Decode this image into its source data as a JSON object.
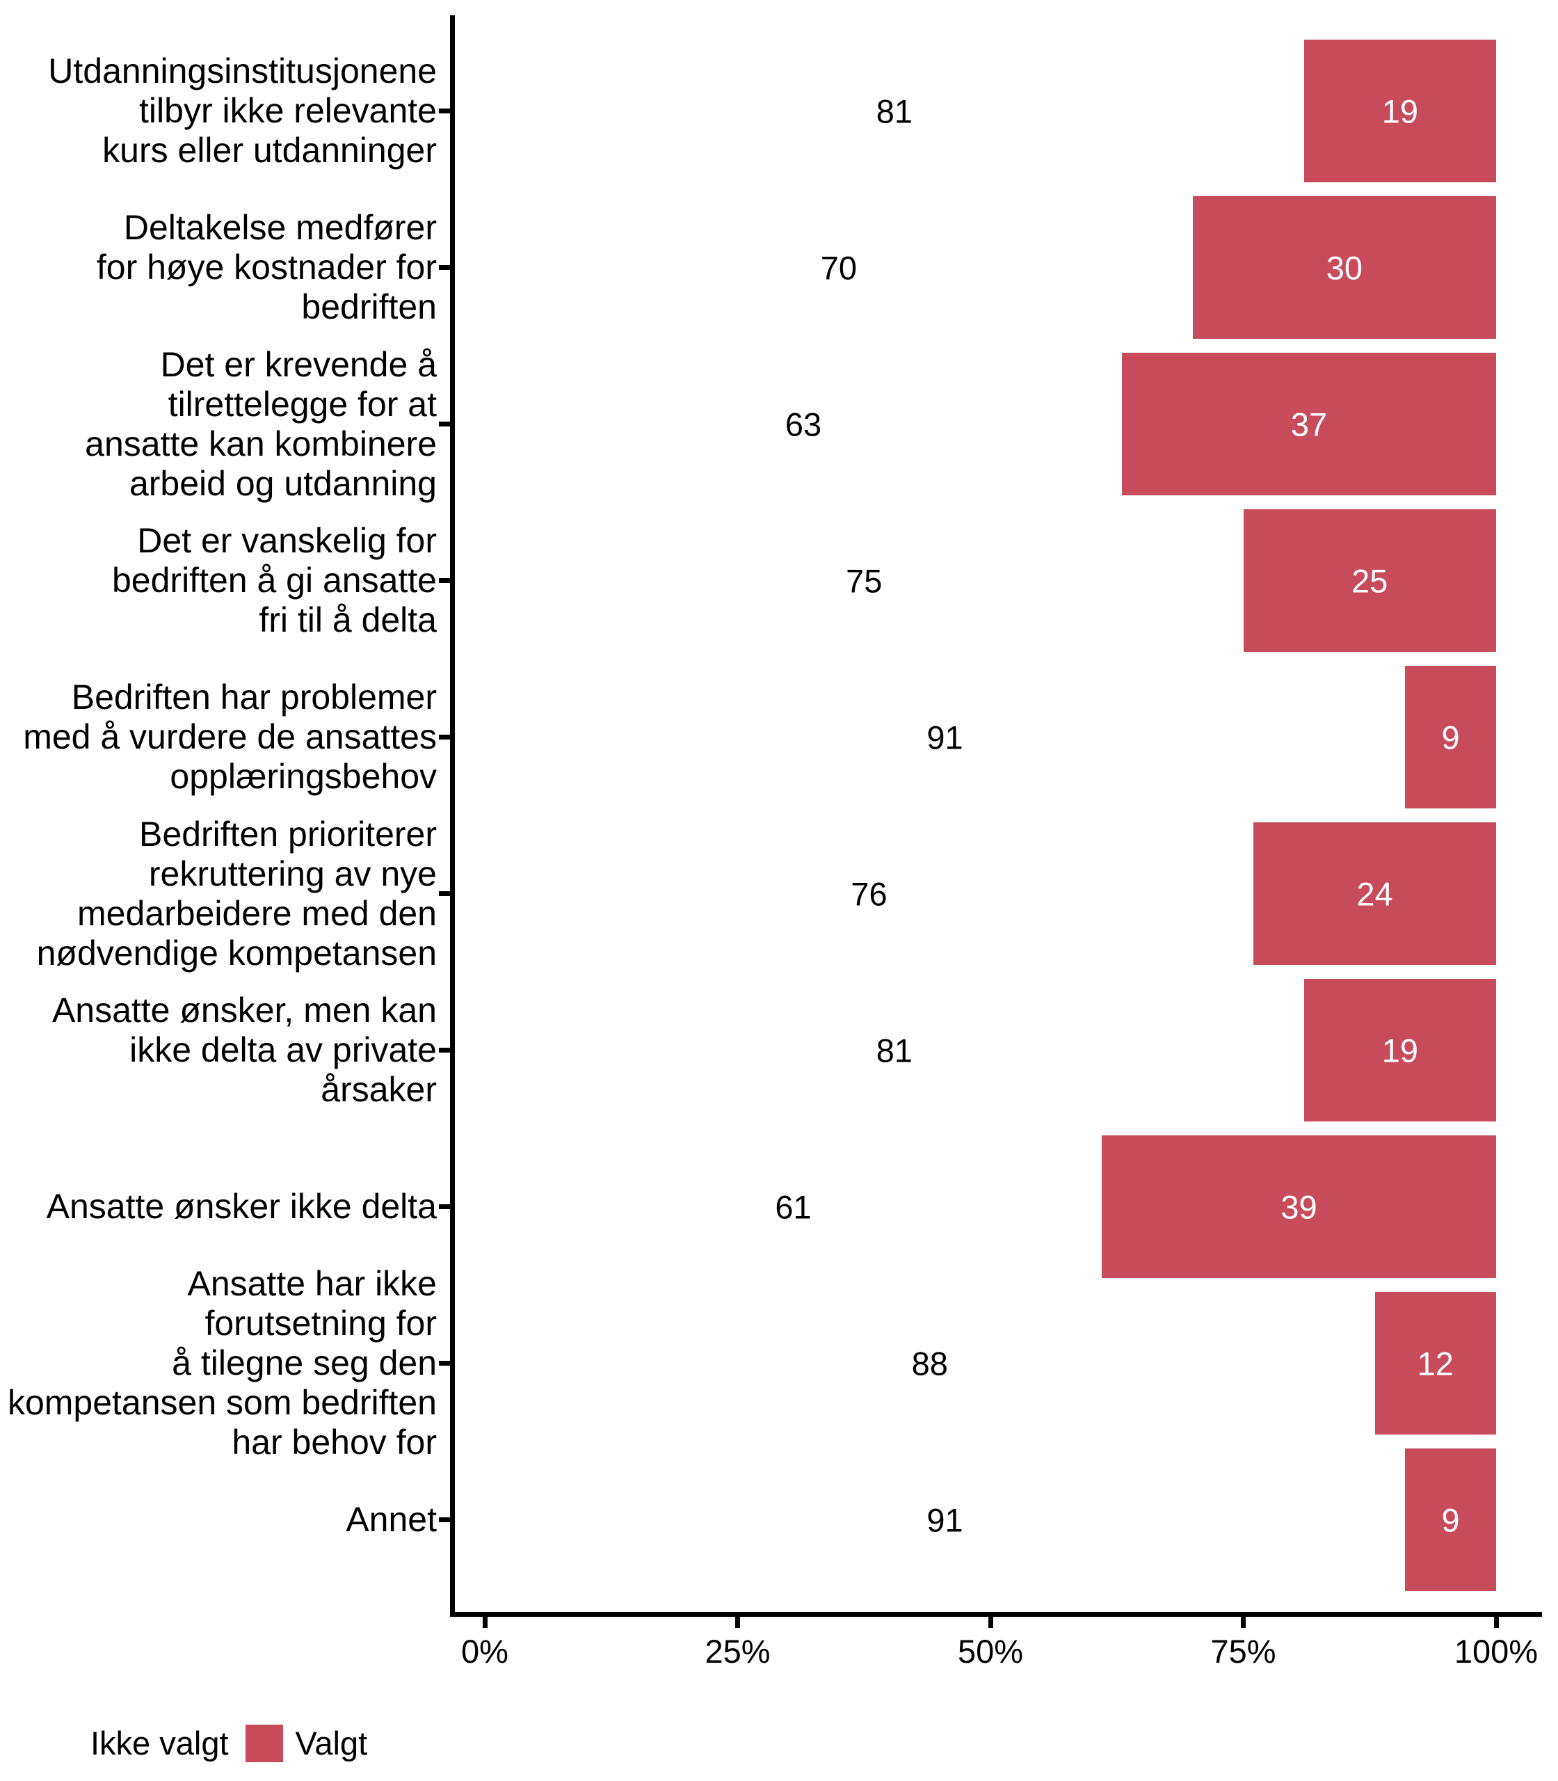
{
  "chart_data": {
    "type": "bar",
    "orientation": "horizontal",
    "stacked": true,
    "unit": "percent",
    "title": "",
    "xlabel": "",
    "ylabel": "",
    "grid": false,
    "x_ticks": [
      "0%",
      "25%",
      "50%",
      "75%",
      "100%"
    ],
    "x_tick_values": [
      0,
      25,
      50,
      75,
      100
    ],
    "x_range": [
      0,
      100
    ],
    "series_names": [
      "Ikke valgt",
      "Valgt"
    ],
    "rows": [
      {
        "label_lines": [
          "Utdanningsinstitusjonene",
          "tilbyr ikke relevante",
          "kurs eller utdanninger"
        ],
        "ikke_valgt": 81,
        "valgt": 19
      },
      {
        "label_lines": [
          "Deltakelse medfører",
          "for høye kostnader for",
          "bedriften"
        ],
        "ikke_valgt": 70,
        "valgt": 30
      },
      {
        "label_lines": [
          "Det er krevende å",
          "tilrettelegge for at",
          "ansatte kan kombinere",
          "arbeid og utdanning"
        ],
        "ikke_valgt": 63,
        "valgt": 37
      },
      {
        "label_lines": [
          "Det er vanskelig for",
          "bedriften å gi ansatte",
          "fri til å delta"
        ],
        "ikke_valgt": 75,
        "valgt": 25
      },
      {
        "label_lines": [
          "Bedriften har problemer",
          "med å vurdere de ansattes",
          "opplæringsbehov"
        ],
        "ikke_valgt": 91,
        "valgt": 9
      },
      {
        "label_lines": [
          "Bedriften prioriterer",
          "rekruttering av nye",
          "medarbeidere med den",
          "nødvendige kompetansen"
        ],
        "ikke_valgt": 76,
        "valgt": 24
      },
      {
        "label_lines": [
          "Ansatte ønsker, men kan",
          "ikke delta av private",
          "årsaker"
        ],
        "ikke_valgt": 81,
        "valgt": 19
      },
      {
        "label_lines": [
          "Ansatte ønsker ikke delta"
        ],
        "ikke_valgt": 61,
        "valgt": 39
      },
      {
        "label_lines": [
          "Ansatte har ikke",
          "forutsetning for",
          "å tilegne seg den",
          "kompetansen som bedriften",
          "har behov for"
        ],
        "ikke_valgt": 88,
        "valgt": 12
      },
      {
        "label_lines": [
          "Annet"
        ],
        "ikke_valgt": 91,
        "valgt": 9
      }
    ],
    "legend_position": "bottom-left"
  },
  "legend": {
    "items": [
      {
        "label": "Ikke valgt",
        "color": "#FFFFFF"
      },
      {
        "label": "Valgt",
        "color": "#C84B5C"
      }
    ]
  },
  "colors": {
    "bar_valgt": "#C84B5C",
    "bar_ikke_valgt": "#FFFFFF",
    "axis": "#000000",
    "text": "#000000",
    "label_on_red": "#FFFFFF",
    "background": "#FFFFFF"
  }
}
